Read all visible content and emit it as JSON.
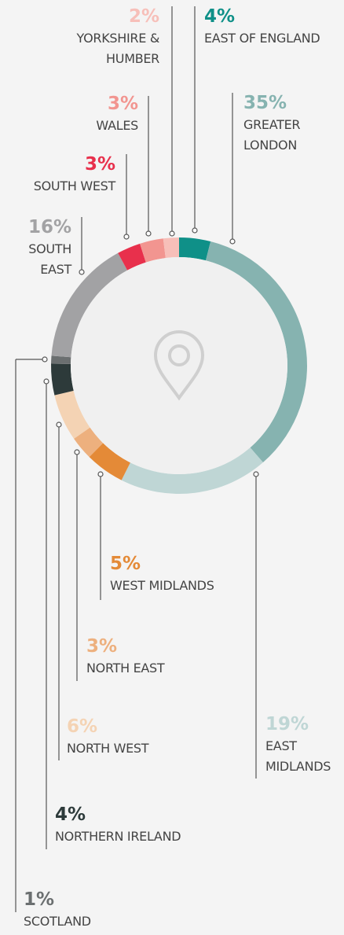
{
  "chart_data": {
    "type": "pie",
    "categories": [
      "EAST OF ENGLAND",
      "GREATER LONDON",
      "EAST MIDLANDS",
      "WEST MIDLANDS",
      "NORTH EAST",
      "NORTH WEST",
      "NORTHERN IRELAND",
      "SCOTLAND",
      "SOUTH EAST",
      "SOUTH WEST",
      "WALES",
      "YORKSHIRE & HUMBER"
    ],
    "values": [
      4,
      35,
      19,
      5,
      3,
      6,
      4,
      1,
      16,
      3,
      3,
      2
    ],
    "value_labels": [
      "4%",
      "35%",
      "19%",
      "5%",
      "3%",
      "6%",
      "4%",
      "1%",
      "16%",
      "3%",
      "3%",
      "2%"
    ],
    "colors": [
      "#0f9088",
      "#86b3b0",
      "#bfd6d5",
      "#e48a37",
      "#edb07e",
      "#f4d3b4",
      "#2d3a3a",
      "#6b6f70",
      "#a2a2a4",
      "#e8304c",
      "#f29590",
      "#f7bfb9"
    ]
  }
}
